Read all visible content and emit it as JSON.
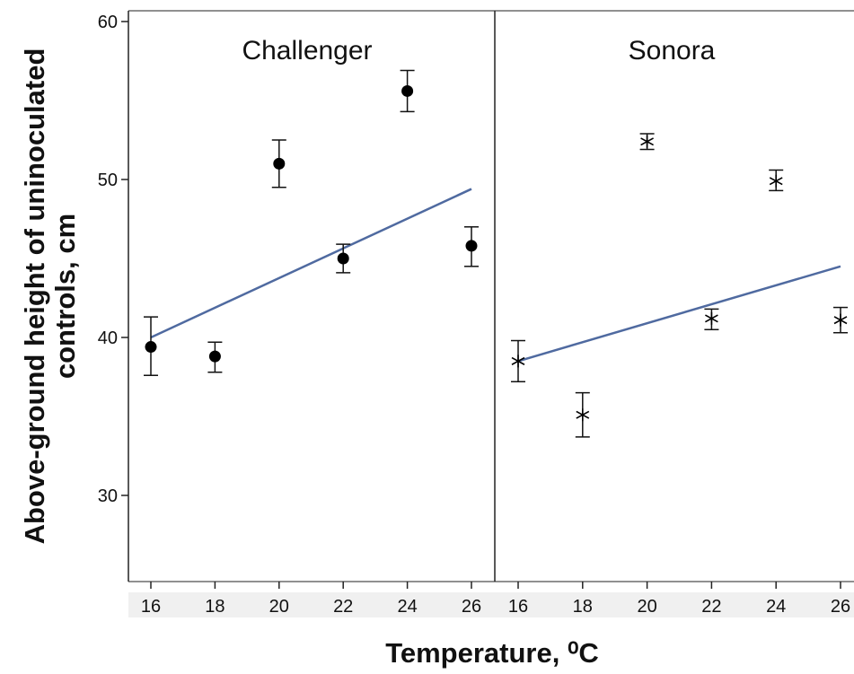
{
  "chart_data": {
    "type": "scatter",
    "xlabel": "Temperature, ⁰C",
    "ylabel_lines": [
      "Above-ground height of uninoculated",
      "controls, cm"
    ],
    "ylim": [
      25,
      60
    ],
    "yticks": [
      "30",
      "40",
      "50",
      "60"
    ],
    "xlim": [
      15.5,
      26.5
    ],
    "xticks": [
      "16",
      "18",
      "20",
      "22",
      "24",
      "26"
    ],
    "grid": false,
    "fit_line_color": "#4f6aa0",
    "marker_color": "#000000",
    "panels": [
      {
        "title": "Challenger",
        "marker": "filled-circle",
        "points": [
          {
            "x": 16,
            "y": 39.4,
            "err_low": 37.6,
            "err_high": 41.3
          },
          {
            "x": 18,
            "y": 38.8,
            "err_low": 37.8,
            "err_high": 39.7
          },
          {
            "x": 20,
            "y": 51.0,
            "err_low": 49.5,
            "err_high": 52.5
          },
          {
            "x": 22,
            "y": 45.0,
            "err_low": 44.1,
            "err_high": 45.9
          },
          {
            "x": 24,
            "y": 55.6,
            "err_low": 54.3,
            "err_high": 56.9
          },
          {
            "x": 26,
            "y": 45.8,
            "err_low": 44.5,
            "err_high": 47.0
          }
        ],
        "fit_line": {
          "x": [
            16,
            26
          ],
          "y": [
            40.0,
            49.4
          ]
        }
      },
      {
        "title": "Sonora",
        "marker": "asterisk",
        "points": [
          {
            "x": 16,
            "y": 38.5,
            "err_low": 37.2,
            "err_high": 39.8
          },
          {
            "x": 18,
            "y": 35.1,
            "err_low": 33.7,
            "err_high": 36.5
          },
          {
            "x": 20,
            "y": 52.4,
            "err_low": 51.9,
            "err_high": 52.9
          },
          {
            "x": 22,
            "y": 41.2,
            "err_low": 40.5,
            "err_high": 41.8
          },
          {
            "x": 24,
            "y": 49.9,
            "err_low": 49.3,
            "err_high": 50.6
          },
          {
            "x": 26,
            "y": 41.1,
            "err_low": 40.3,
            "err_high": 41.9
          }
        ],
        "fit_line": {
          "x": [
            16,
            26
          ],
          "y": [
            38.5,
            44.5
          ]
        }
      }
    ]
  }
}
